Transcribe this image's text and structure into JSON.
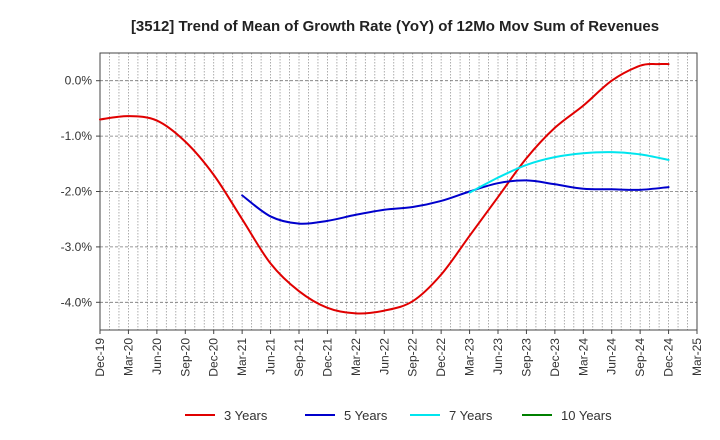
{
  "chart_data": {
    "type": "line",
    "title": "[3512]  Trend of Mean of Growth Rate (YoY) of 12Mo Mov Sum of Revenues",
    "xlabel": "",
    "ylabel": "",
    "ylim": [
      -4.5,
      0.5
    ],
    "grid": true,
    "legend_position": "bottom",
    "x_ticks": [
      "Dec-19",
      "Mar-20",
      "Jun-20",
      "Sep-20",
      "Dec-20",
      "Mar-21",
      "Jun-21",
      "Sep-21",
      "Dec-21",
      "Mar-22",
      "Jun-22",
      "Sep-22",
      "Dec-22",
      "Mar-23",
      "Jun-23",
      "Sep-23",
      "Dec-23",
      "Mar-24",
      "Jun-24",
      "Sep-24",
      "Dec-24",
      "Mar-25"
    ],
    "y_ticks": [
      {
        "value": 0,
        "label": "0.0%"
      },
      {
        "value": -1,
        "label": "-1.0%"
      },
      {
        "value": -2,
        "label": "-2.0%"
      },
      {
        "value": -3,
        "label": "-3.0%"
      },
      {
        "value": -4,
        "label": "-4.0%"
      }
    ],
    "series": [
      {
        "name": "3 Years",
        "color": "#e00000",
        "points": [
          [
            0,
            -0.7
          ],
          [
            1,
            -0.64
          ],
          [
            2,
            -0.72
          ],
          [
            3,
            -1.1
          ],
          [
            4,
            -1.7
          ],
          [
            5,
            -2.5
          ],
          [
            6,
            -3.3
          ],
          [
            7,
            -3.8
          ],
          [
            8,
            -4.1
          ],
          [
            9,
            -4.2
          ],
          [
            10,
            -4.15
          ],
          [
            11,
            -3.98
          ],
          [
            12,
            -3.5
          ],
          [
            13,
            -2.8
          ],
          [
            14,
            -2.1
          ],
          [
            15,
            -1.4
          ],
          [
            16,
            -0.85
          ],
          [
            17,
            -0.45
          ],
          [
            18,
            0.0
          ],
          [
            19,
            0.27
          ],
          [
            19.6,
            0.3
          ],
          [
            20,
            0.3
          ]
        ]
      },
      {
        "name": "5 Years",
        "color": "#0000cc",
        "points": [
          [
            5,
            -2.07
          ],
          [
            6,
            -2.45
          ],
          [
            7,
            -2.58
          ],
          [
            8,
            -2.53
          ],
          [
            9,
            -2.42
          ],
          [
            10,
            -2.33
          ],
          [
            11,
            -2.28
          ],
          [
            12,
            -2.17
          ],
          [
            13,
            -2.0
          ],
          [
            14,
            -1.85
          ],
          [
            15,
            -1.8
          ],
          [
            16,
            -1.87
          ],
          [
            17,
            -1.95
          ],
          [
            18,
            -1.96
          ],
          [
            19,
            -1.97
          ],
          [
            20,
            -1.92
          ]
        ]
      },
      {
        "name": "7 Years",
        "color": "#00e5ee",
        "points": [
          [
            13,
            -2.02
          ],
          [
            14,
            -1.75
          ],
          [
            15,
            -1.52
          ],
          [
            16,
            -1.38
          ],
          [
            17,
            -1.31
          ],
          [
            18,
            -1.29
          ],
          [
            19,
            -1.33
          ],
          [
            20,
            -1.43
          ]
        ]
      },
      {
        "name": "10 Years",
        "color": "#008000",
        "points": []
      }
    ]
  }
}
